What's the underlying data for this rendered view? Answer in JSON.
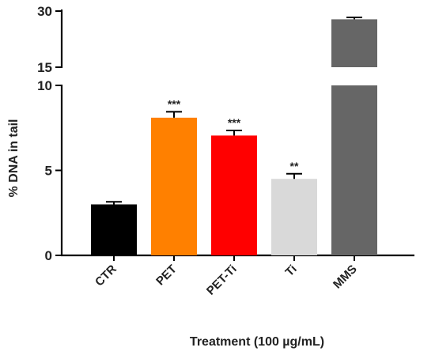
{
  "chart_data": {
    "type": "bar",
    "title": "",
    "xlabel": "Treatment (100 µg/mL)",
    "ylabel": "% DNA in tail",
    "categories": [
      "CTR",
      "PET",
      "PET-Ti",
      "Ti",
      "MMS"
    ],
    "values": [
      3.0,
      8.1,
      7.05,
      4.5,
      27.8
    ],
    "errors": [
      0.15,
      0.35,
      0.3,
      0.3,
      0.5
    ],
    "significance": [
      "",
      "***",
      "***",
      "**",
      ""
    ],
    "colors": [
      "#000000",
      "#ff8000",
      "#ff0000",
      "#d9d9d9",
      "#666666"
    ],
    "segments": [
      {
        "ylim": [
          0,
          10
        ],
        "ticks": [
          0,
          5,
          10
        ]
      },
      {
        "ylim": [
          15,
          30
        ],
        "ticks": [
          15,
          30
        ]
      }
    ],
    "grid": false,
    "legend": "none"
  }
}
